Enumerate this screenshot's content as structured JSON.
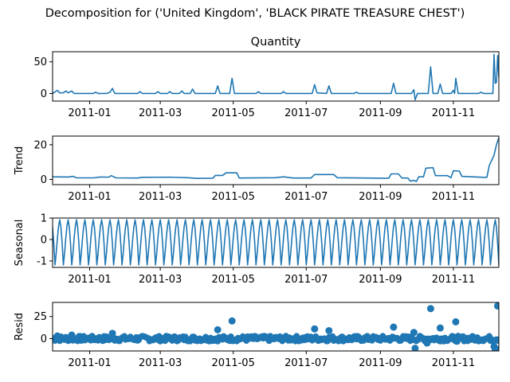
{
  "chart_data": {
    "type": "line",
    "suptitle": "Decomposition for ('United Kingdom', 'BLACK PIRATE TREASURE CHEST')",
    "line_color": "#1f77b4",
    "x_tick_labels": [
      "2011-01",
      "2011-03",
      "2011-05",
      "2011-07",
      "2011-09",
      "2011-11"
    ],
    "x_tick_dates": [
      "2011-01-01",
      "2011-03-01",
      "2011-05-01",
      "2011-07-01",
      "2011-09-01",
      "2011-11-01"
    ],
    "x_range": [
      "2010-12-01",
      "2011-12-09"
    ],
    "panels": [
      {
        "name": "observed",
        "title": "Quantity",
        "ylabel": "",
        "kind": "line",
        "ylim": [
          -12,
          66
        ],
        "yticks": [
          0,
          50
        ],
        "zero_line": false,
        "points": [
          [
            "2010-12-01",
            0
          ],
          [
            "2010-12-05",
            5
          ],
          [
            "2010-12-07",
            1
          ],
          [
            "2010-12-10",
            1
          ],
          [
            "2010-12-12",
            4
          ],
          [
            "2010-12-14",
            1
          ],
          [
            "2010-12-17",
            4
          ],
          [
            "2010-12-19",
            0
          ],
          [
            "2011-01-04",
            0
          ],
          [
            "2011-01-06",
            2
          ],
          [
            "2011-01-08",
            0
          ],
          [
            "2011-01-15",
            0
          ],
          [
            "2011-01-18",
            2
          ],
          [
            "2011-01-20",
            8
          ],
          [
            "2011-01-22",
            0
          ],
          [
            "2011-02-10",
            0
          ],
          [
            "2011-02-12",
            3
          ],
          [
            "2011-02-14",
            0
          ],
          [
            "2011-02-25",
            0
          ],
          [
            "2011-02-27",
            3
          ],
          [
            "2011-03-01",
            0
          ],
          [
            "2011-03-07",
            0
          ],
          [
            "2011-03-09",
            3
          ],
          [
            "2011-03-11",
            0
          ],
          [
            "2011-03-17",
            0
          ],
          [
            "2011-03-19",
            4
          ],
          [
            "2011-03-21",
            0
          ],
          [
            "2011-03-26",
            0
          ],
          [
            "2011-03-28",
            7
          ],
          [
            "2011-03-30",
            0
          ],
          [
            "2011-04-16",
            0
          ],
          [
            "2011-04-18",
            12
          ],
          [
            "2011-04-20",
            0
          ],
          [
            "2011-04-28",
            0
          ],
          [
            "2011-04-30",
            24
          ],
          [
            "2011-05-02",
            0
          ],
          [
            "2011-05-20",
            0
          ],
          [
            "2011-05-22",
            3
          ],
          [
            "2011-05-24",
            0
          ],
          [
            "2011-06-10",
            0
          ],
          [
            "2011-06-12",
            3
          ],
          [
            "2011-06-14",
            0
          ],
          [
            "2011-07-06",
            0
          ],
          [
            "2011-07-08",
            14
          ],
          [
            "2011-07-10",
            1
          ],
          [
            "2011-07-18",
            0
          ],
          [
            "2011-07-20",
            12
          ],
          [
            "2011-07-22",
            0
          ],
          [
            "2011-08-10",
            0
          ],
          [
            "2011-08-12",
            2
          ],
          [
            "2011-08-14",
            0
          ],
          [
            "2011-09-10",
            0
          ],
          [
            "2011-09-12",
            16
          ],
          [
            "2011-09-14",
            0
          ],
          [
            "2011-09-27",
            0
          ],
          [
            "2011-09-29",
            6
          ],
          [
            "2011-09-30",
            -10
          ],
          [
            "2011-10-02",
            0
          ],
          [
            "2011-10-11",
            0
          ],
          [
            "2011-10-13",
            42
          ],
          [
            "2011-10-15",
            0
          ],
          [
            "2011-10-19",
            0
          ],
          [
            "2011-10-21",
            15
          ],
          [
            "2011-10-23",
            0
          ],
          [
            "2011-10-30",
            0
          ],
          [
            "2011-11-01",
            5
          ],
          [
            "2011-11-02",
            0
          ],
          [
            "2011-11-03",
            24
          ],
          [
            "2011-11-05",
            0
          ],
          [
            "2011-11-22",
            0
          ],
          [
            "2011-11-24",
            2
          ],
          [
            "2011-11-26",
            0
          ],
          [
            "2011-12-04",
            0
          ],
          [
            "2011-12-05",
            62
          ],
          [
            "2011-12-06",
            16
          ],
          [
            "2011-12-07",
            18
          ],
          [
            "2011-12-08",
            60
          ],
          [
            "2011-12-09",
            25
          ]
        ]
      },
      {
        "name": "trend",
        "title": "",
        "ylabel": "Trend",
        "kind": "line",
        "ylim": [
          -3,
          25
        ],
        "yticks": [
          0,
          20
        ],
        "zero_line": false,
        "points": [
          [
            "2010-12-01",
            1.5
          ],
          [
            "2010-12-14",
            1.4
          ],
          [
            "2010-12-18",
            1.8
          ],
          [
            "2010-12-21",
            0.9
          ],
          [
            "2011-01-04",
            0.9
          ],
          [
            "2011-01-10",
            1.4
          ],
          [
            "2011-01-17",
            1.3
          ],
          [
            "2011-01-19",
            2.2
          ],
          [
            "2011-01-23",
            0.9
          ],
          [
            "2011-02-10",
            0.8
          ],
          [
            "2011-02-14",
            1.2
          ],
          [
            "2011-03-10",
            1.3
          ],
          [
            "2011-03-24",
            1.0
          ],
          [
            "2011-04-01",
            0.6
          ],
          [
            "2011-04-14",
            0.7
          ],
          [
            "2011-04-16",
            2.3
          ],
          [
            "2011-04-22",
            2.3
          ],
          [
            "2011-04-25",
            3.8
          ],
          [
            "2011-05-04",
            3.8
          ],
          [
            "2011-05-06",
            0.8
          ],
          [
            "2011-06-05",
            1.0
          ],
          [
            "2011-06-12",
            1.5
          ],
          [
            "2011-06-20",
            0.8
          ],
          [
            "2011-07-05",
            0.8
          ],
          [
            "2011-07-08",
            2.8
          ],
          [
            "2011-07-24",
            2.8
          ],
          [
            "2011-07-27",
            1.0
          ],
          [
            "2011-08-20",
            0.8
          ],
          [
            "2011-09-01",
            0.7
          ],
          [
            "2011-09-08",
            0.7
          ],
          [
            "2011-09-10",
            3.2
          ],
          [
            "2011-09-16",
            3.2
          ],
          [
            "2011-09-19",
            0.8
          ],
          [
            "2011-09-24",
            0.8
          ],
          [
            "2011-09-26",
            -1.0
          ],
          [
            "2011-09-29",
            -0.5
          ],
          [
            "2011-10-01",
            -1.2
          ],
          [
            "2011-10-03",
            1.5
          ],
          [
            "2011-10-07",
            1.5
          ],
          [
            "2011-10-09",
            6.5
          ],
          [
            "2011-10-15",
            6.8
          ],
          [
            "2011-10-17",
            2.2
          ],
          [
            "2011-10-27",
            2.2
          ],
          [
            "2011-10-30",
            1.0
          ],
          [
            "2011-11-01",
            5.0
          ],
          [
            "2011-11-06",
            4.8
          ],
          [
            "2011-11-08",
            1.8
          ],
          [
            "2011-11-26",
            1.2
          ],
          [
            "2011-11-29",
            1.2
          ],
          [
            "2011-12-01",
            8.0
          ],
          [
            "2011-12-03",
            11.0
          ],
          [
            "2011-12-05",
            14.0
          ],
          [
            "2011-12-07",
            20.0
          ],
          [
            "2011-12-09",
            24.0
          ]
        ]
      },
      {
        "name": "seasonal",
        "title": "",
        "ylabel": "Seasonal",
        "kind": "seasonal",
        "ylim": [
          -1.3,
          1.0
        ],
        "yticks": [
          -1,
          0,
          1
        ],
        "zero_line": false,
        "period_days": 7,
        "cycle": [
          0.92,
          0.55,
          -0.2,
          -1.18,
          -0.65,
          0.05,
          0.62
        ]
      },
      {
        "name": "resid",
        "title": "",
        "ylabel": "Resid",
        "kind": "scatter",
        "ylim": [
          -14,
          41
        ],
        "yticks": [
          0,
          25
        ],
        "zero_line": true,
        "points": [
          [
            "2010-12-05",
            3
          ],
          [
            "2010-12-17",
            4
          ],
          [
            "2011-01-20",
            6
          ],
          [
            "2011-04-18",
            10
          ],
          [
            "2011-04-30",
            20
          ],
          [
            "2011-05-01",
            -2
          ],
          [
            "2011-07-08",
            11
          ],
          [
            "2011-07-20",
            9
          ],
          [
            "2011-09-12",
            13
          ],
          [
            "2011-09-29",
            7
          ],
          [
            "2011-09-30",
            -11
          ],
          [
            "2011-10-10",
            -5
          ],
          [
            "2011-10-13",
            34
          ],
          [
            "2011-10-21",
            12
          ],
          [
            "2011-11-03",
            19
          ],
          [
            "2011-11-04",
            -3
          ],
          [
            "2011-12-05",
            -9
          ],
          [
            "2011-12-06",
            -12
          ],
          [
            "2011-12-08",
            37
          ],
          [
            "2011-12-09",
            -12
          ]
        ],
        "baseline_noise": [
          -3,
          3
        ]
      }
    ]
  }
}
